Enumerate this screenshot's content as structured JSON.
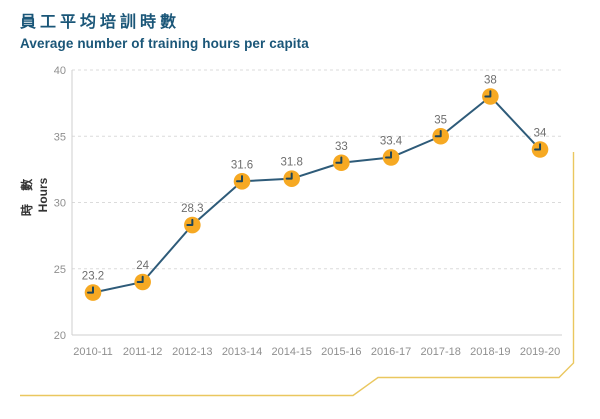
{
  "header": {
    "title_zh": "員工平均培訓時數",
    "title_en": "Average number of training hours per capita"
  },
  "y_axis_title": {
    "zh": "時 數",
    "en": "Hours"
  },
  "chart_data": {
    "type": "line",
    "title": "員工平均培訓時數",
    "subtitle": "Average number of training hours per capita",
    "categories": [
      "2010-11",
      "2011-12",
      "2012-13",
      "2013-14",
      "2014-15",
      "2015-16",
      "2016-17",
      "2017-18",
      "2018-19",
      "2019-20"
    ],
    "values": [
      23.2,
      24,
      28.3,
      31.6,
      31.8,
      33,
      33.4,
      35,
      38,
      34
    ],
    "point_labels": [
      "23.2",
      "24",
      "28.3",
      "31.6",
      "31.8",
      "33",
      "33.4",
      "35",
      "38",
      "34"
    ],
    "ylabel_zh": "時 數",
    "ylabel_en": "Hours",
    "xlabel": "",
    "ylim": [
      20,
      40
    ],
    "yticks": [
      20,
      25,
      30,
      35,
      40
    ],
    "grid": "horizontal-dashed",
    "legend": "none",
    "marker_icon": "clock-icon",
    "colors": {
      "line": "#2E5B79",
      "marker_fill": "#F6A923",
      "marker_hands": "#1E4559",
      "data_label": "#6E6E6E",
      "tick_label": "#8F8F8F",
      "gridline": "#DBDBDB",
      "axis_line": "#CFCFCF",
      "title": "#1A5678",
      "decor_line": "#EAC75F"
    }
  }
}
